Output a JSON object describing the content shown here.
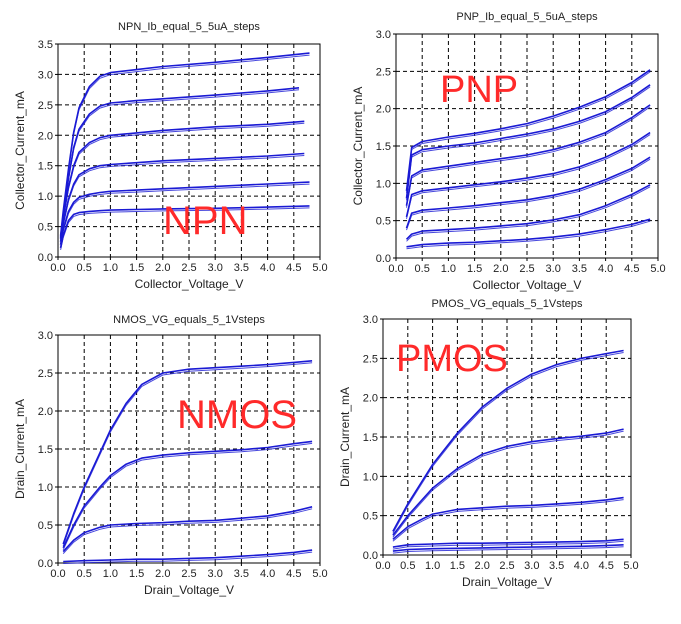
{
  "chart_data": [
    {
      "type": "line",
      "title": "NPN_Ib_equal_5_5uA_steps",
      "xlabel": "Collector_Voltage_V",
      "ylabel": "Collector_Current_mA",
      "annotation": "NPN",
      "xlim": [
        0,
        5
      ],
      "ylim": [
        0,
        3.5
      ],
      "xticks": [
        "0.0",
        "0.5",
        "1.0",
        "1.5",
        "2.0",
        "2.5",
        "3.0",
        "3.5",
        "4.0",
        "4.5",
        "5.0"
      ],
      "yticks": [
        "0.0",
        "0.5",
        "1.0",
        "1.5",
        "2.0",
        "2.5",
        "3.0",
        "3.5"
      ],
      "grid": true,
      "series": [
        {
          "x": [
            0.05,
            0.1,
            0.2,
            0.3,
            0.4,
            0.6,
            0.8,
            1.0,
            1.5,
            2.0,
            3.0,
            4.0,
            4.8
          ],
          "y": [
            0.15,
            0.35,
            0.6,
            0.7,
            0.73,
            0.75,
            0.76,
            0.77,
            0.78,
            0.79,
            0.8,
            0.82,
            0.84
          ]
        },
        {
          "x": [
            0.05,
            0.1,
            0.2,
            0.3,
            0.4,
            0.6,
            0.8,
            1.0,
            1.5,
            2.0,
            3.0,
            4.0,
            4.8
          ],
          "y": [
            0.2,
            0.45,
            0.75,
            0.9,
            0.98,
            1.03,
            1.06,
            1.08,
            1.1,
            1.12,
            1.16,
            1.2,
            1.23
          ]
        },
        {
          "x": [
            0.05,
            0.1,
            0.2,
            0.3,
            0.4,
            0.6,
            0.8,
            1.0,
            1.5,
            2.0,
            3.0,
            4.0,
            4.7
          ],
          "y": [
            0.25,
            0.55,
            0.95,
            1.2,
            1.35,
            1.45,
            1.5,
            1.52,
            1.55,
            1.58,
            1.62,
            1.66,
            1.7
          ]
        },
        {
          "x": [
            0.05,
            0.1,
            0.2,
            0.3,
            0.4,
            0.6,
            0.8,
            1.0,
            1.5,
            2.0,
            3.0,
            4.0,
            4.7
          ],
          "y": [
            0.3,
            0.65,
            1.15,
            1.5,
            1.72,
            1.88,
            1.96,
            2.0,
            2.04,
            2.08,
            2.14,
            2.18,
            2.23
          ]
        },
        {
          "x": [
            0.05,
            0.1,
            0.2,
            0.3,
            0.4,
            0.6,
            0.8,
            1.0,
            1.5,
            2.0,
            3.0,
            4.0,
            4.6
          ],
          "y": [
            0.32,
            0.7,
            1.3,
            1.8,
            2.1,
            2.35,
            2.48,
            2.53,
            2.57,
            2.6,
            2.66,
            2.73,
            2.78
          ]
        },
        {
          "x": [
            0.05,
            0.1,
            0.2,
            0.3,
            0.4,
            0.6,
            0.8,
            1.0,
            1.5,
            2.0,
            3.0,
            4.0,
            4.8
          ],
          "y": [
            0.35,
            0.75,
            1.45,
            2.05,
            2.45,
            2.8,
            2.97,
            3.03,
            3.08,
            3.13,
            3.2,
            3.28,
            3.35
          ]
        }
      ]
    },
    {
      "type": "line",
      "title": "PNP_Ib_equal_5_5uA_steps",
      "xlabel": "Collector_Voltage_V",
      "ylabel": "Collector_Current_mA",
      "annotation": "PNP",
      "xlim": [
        0,
        5
      ],
      "ylim": [
        0,
        3.0
      ],
      "xticks": [
        "0.0",
        "0.5",
        "1.0",
        "1.5",
        "2.0",
        "2.5",
        "3.0",
        "3.5",
        "4.0",
        "4.5",
        "5.0"
      ],
      "yticks": [
        "0.0",
        "0.5",
        "1.0",
        "1.5",
        "2.0",
        "2.5",
        "3.0"
      ],
      "grid": true,
      "series": [
        {
          "x": [
            0.2,
            0.5,
            1.0,
            1.5,
            2.0,
            2.5,
            3.0,
            3.5,
            4.0,
            4.5,
            4.85
          ],
          "y": [
            0.15,
            0.18,
            0.2,
            0.21,
            0.23,
            0.25,
            0.28,
            0.32,
            0.38,
            0.45,
            0.52
          ]
        },
        {
          "x": [
            0.2,
            0.3,
            0.5,
            1.0,
            1.5,
            2.0,
            2.5,
            3.0,
            3.5,
            4.0,
            4.5,
            4.85
          ],
          "y": [
            0.25,
            0.32,
            0.36,
            0.38,
            0.4,
            0.43,
            0.46,
            0.51,
            0.58,
            0.7,
            0.85,
            0.98
          ]
        },
        {
          "x": [
            0.2,
            0.3,
            0.5,
            1.0,
            1.5,
            2.0,
            2.5,
            3.0,
            3.5,
            4.0,
            4.5,
            4.85
          ],
          "y": [
            0.4,
            0.6,
            0.64,
            0.67,
            0.7,
            0.74,
            0.78,
            0.84,
            0.92,
            1.05,
            1.2,
            1.35
          ]
        },
        {
          "x": [
            0.2,
            0.3,
            0.5,
            1.0,
            1.5,
            2.0,
            2.5,
            3.0,
            3.5,
            4.0,
            4.5,
            4.85
          ],
          "y": [
            0.55,
            0.85,
            0.9,
            0.94,
            0.98,
            1.02,
            1.07,
            1.13,
            1.22,
            1.35,
            1.52,
            1.68
          ]
        },
        {
          "x": [
            0.2,
            0.3,
            0.5,
            1.0,
            1.5,
            2.0,
            2.5,
            3.0,
            3.5,
            4.0,
            4.5,
            4.85
          ],
          "y": [
            0.7,
            1.1,
            1.18,
            1.23,
            1.28,
            1.33,
            1.38,
            1.45,
            1.55,
            1.68,
            1.88,
            2.05
          ]
        },
        {
          "x": [
            0.2,
            0.3,
            0.5,
            1.0,
            1.5,
            2.0,
            2.5,
            3.0,
            3.5,
            4.0,
            4.5,
            4.85
          ],
          "y": [
            0.8,
            1.38,
            1.45,
            1.5,
            1.54,
            1.6,
            1.66,
            1.73,
            1.83,
            1.96,
            2.15,
            2.32
          ]
        },
        {
          "x": [
            0.2,
            0.3,
            0.5,
            1.0,
            1.5,
            2.0,
            2.5,
            3.0,
            3.5,
            4.0,
            4.5,
            4.85
          ],
          "y": [
            0.9,
            1.48,
            1.56,
            1.62,
            1.67,
            1.73,
            1.8,
            1.9,
            2.02,
            2.16,
            2.35,
            2.52
          ]
        }
      ]
    },
    {
      "type": "line",
      "title": "NMOS_VG_equals_5_1Vsteps",
      "xlabel": "Drain_Voltage_V",
      "ylabel": "Drain_Current_mA",
      "annotation": "NMOS",
      "xlim": [
        0,
        5
      ],
      "ylim": [
        0,
        3.0
      ],
      "xticks": [
        "0.0",
        "0.5",
        "1.0",
        "1.5",
        "2.0",
        "2.5",
        "3.0",
        "3.5",
        "4.0",
        "4.5",
        "5.0"
      ],
      "yticks": [
        "0.0",
        "0.5",
        "1.0",
        "1.5",
        "2.0",
        "2.5",
        "3.0"
      ],
      "grid": true,
      "series": [
        {
          "x": [
            0.1,
            0.5,
            1.0,
            1.5,
            2.0,
            2.5,
            3.0,
            3.5,
            4.0,
            4.5,
            4.85
          ],
          "y": [
            0.02,
            0.03,
            0.04,
            0.05,
            0.05,
            0.06,
            0.07,
            0.09,
            0.11,
            0.14,
            0.17
          ]
        },
        {
          "x": [
            0.1,
            0.3,
            0.5,
            0.8,
            1.0,
            1.5,
            2.0,
            2.5,
            3.0,
            3.5,
            4.0,
            4.5,
            4.85
          ],
          "y": [
            0.15,
            0.3,
            0.4,
            0.47,
            0.5,
            0.52,
            0.53,
            0.55,
            0.56,
            0.59,
            0.62,
            0.68,
            0.74
          ]
        },
        {
          "x": [
            0.1,
            0.3,
            0.5,
            0.8,
            1.0,
            1.3,
            1.6,
            2.0,
            2.5,
            3.0,
            3.5,
            4.0,
            4.5,
            4.85
          ],
          "y": [
            0.2,
            0.5,
            0.75,
            1.0,
            1.15,
            1.3,
            1.38,
            1.42,
            1.45,
            1.47,
            1.49,
            1.52,
            1.57,
            1.6
          ]
        },
        {
          "x": [
            0.1,
            0.3,
            0.5,
            0.8,
            1.0,
            1.3,
            1.6,
            2.0,
            2.5,
            3.0,
            3.5,
            4.0,
            4.5,
            4.85
          ],
          "y": [
            0.25,
            0.65,
            1.0,
            1.45,
            1.75,
            2.1,
            2.35,
            2.5,
            2.55,
            2.57,
            2.59,
            2.61,
            2.64,
            2.66
          ]
        }
      ]
    },
    {
      "type": "line",
      "title": "PMOS_VG_equals_5_1Vsteps",
      "xlabel": "Drain_Voltage_V",
      "ylabel": "Drain_Current_mA",
      "annotation": "PMOS",
      "xlim": [
        0,
        5
      ],
      "ylim": [
        0,
        3.0
      ],
      "xticks": [
        "0.0",
        "0.5",
        "1.0",
        "1.5",
        "2.0",
        "2.5",
        "3.0",
        "3.5",
        "4.0",
        "4.5",
        "5.0"
      ],
      "yticks": [
        "0.0",
        "0.5",
        "1.0",
        "1.5",
        "2.0",
        "2.5",
        "3.0"
      ],
      "grid": true,
      "series": [
        {
          "x": [
            0.2,
            0.5,
            1.0,
            2.0,
            3.0,
            4.0,
            4.5,
            4.85
          ],
          "y": [
            0.05,
            0.07,
            0.08,
            0.09,
            0.1,
            0.11,
            0.12,
            0.13
          ]
        },
        {
          "x": [
            0.2,
            0.5,
            1.0,
            1.5,
            2.0,
            3.0,
            4.0,
            4.5,
            4.85
          ],
          "y": [
            0.1,
            0.13,
            0.14,
            0.15,
            0.15,
            0.16,
            0.17,
            0.18,
            0.2
          ]
        },
        {
          "x": [
            0.2,
            0.5,
            0.8,
            1.0,
            1.5,
            2.0,
            2.5,
            3.0,
            3.5,
            4.0,
            4.5,
            4.85
          ],
          "y": [
            0.2,
            0.36,
            0.46,
            0.52,
            0.58,
            0.6,
            0.62,
            0.63,
            0.65,
            0.67,
            0.7,
            0.73
          ]
        },
        {
          "x": [
            0.2,
            0.5,
            1.0,
            1.5,
            2.0,
            2.5,
            3.0,
            3.5,
            4.0,
            4.5,
            4.85
          ],
          "y": [
            0.25,
            0.5,
            0.85,
            1.1,
            1.28,
            1.38,
            1.44,
            1.48,
            1.51,
            1.55,
            1.6
          ]
        },
        {
          "x": [
            0.2,
            0.5,
            1.0,
            1.5,
            2.0,
            2.5,
            3.0,
            3.5,
            4.0,
            4.5,
            4.85
          ],
          "y": [
            0.3,
            0.65,
            1.15,
            1.55,
            1.88,
            2.12,
            2.3,
            2.42,
            2.5,
            2.56,
            2.6
          ]
        }
      ]
    }
  ],
  "colors": {
    "line": "#1a1ad4",
    "annotation": "#ff2a2a",
    "axis": "#000000",
    "grid": "#000000",
    "text": "#222222"
  }
}
